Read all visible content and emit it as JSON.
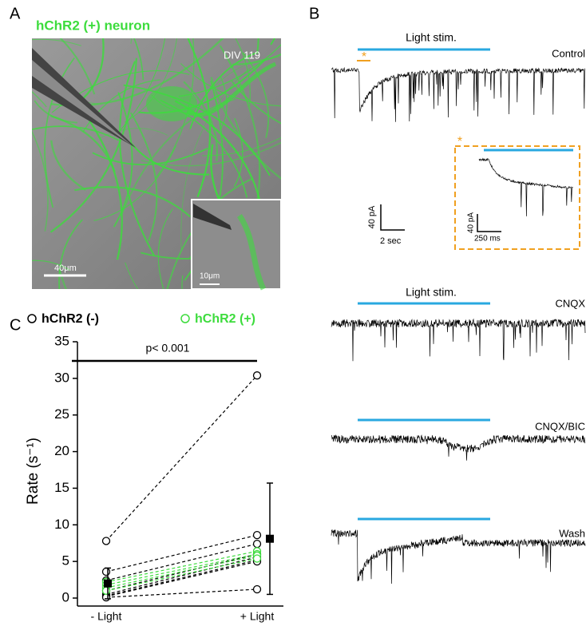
{
  "panels": {
    "A": {
      "label": "A",
      "title": "hChR2 (+) neuron",
      "div": "DIV 119",
      "scale": "40μm",
      "inset_scale": "10μm"
    },
    "B": {
      "label": "B",
      "stim": [
        "Light stim.",
        "Light stim."
      ],
      "conditions": [
        "Control",
        "CNQX",
        "CNQX/BIC",
        "Wash"
      ],
      "star": "*",
      "scale_y": "40 pA",
      "scale_x": "2 sec",
      "inset_star": "*",
      "inset_scale_y": "40 pA",
      "inset_scale_x": "250 ms"
    },
    "C": {
      "label": "C"
    }
  },
  "chart_data": {
    "type": "paired-scatter",
    "categories": [
      "- Light",
      "+ Light"
    ],
    "ylabel": "Rate (s⁻¹)",
    "annotation": "p< 0.001",
    "ylim": [
      0,
      35
    ],
    "yticks": [
      0,
      5,
      10,
      15,
      20,
      25,
      30,
      35
    ],
    "series": [
      {
        "name": "hChR2 (-)",
        "color": "#000000",
        "values": [
          [
            7.8,
            30.4
          ],
          [
            3.6,
            8.6
          ],
          [
            2.4,
            7.4
          ],
          [
            1.0,
            6.0
          ],
          [
            0.5,
            5.6
          ],
          [
            0.3,
            5.2
          ],
          [
            0.2,
            5.0
          ],
          [
            0.1,
            1.2
          ]
        ]
      },
      {
        "name": "hChR2 (+)",
        "color": "#3ddc3d",
        "values": [
          [
            2.2,
            6.4
          ],
          [
            1.8,
            6.0
          ],
          [
            1.4,
            5.8
          ],
          [
            1.0,
            5.4
          ]
        ]
      }
    ],
    "mean": {
      "values": [
        2.0,
        8.1
      ],
      "errors": [
        2.1,
        7.6
      ]
    }
  }
}
